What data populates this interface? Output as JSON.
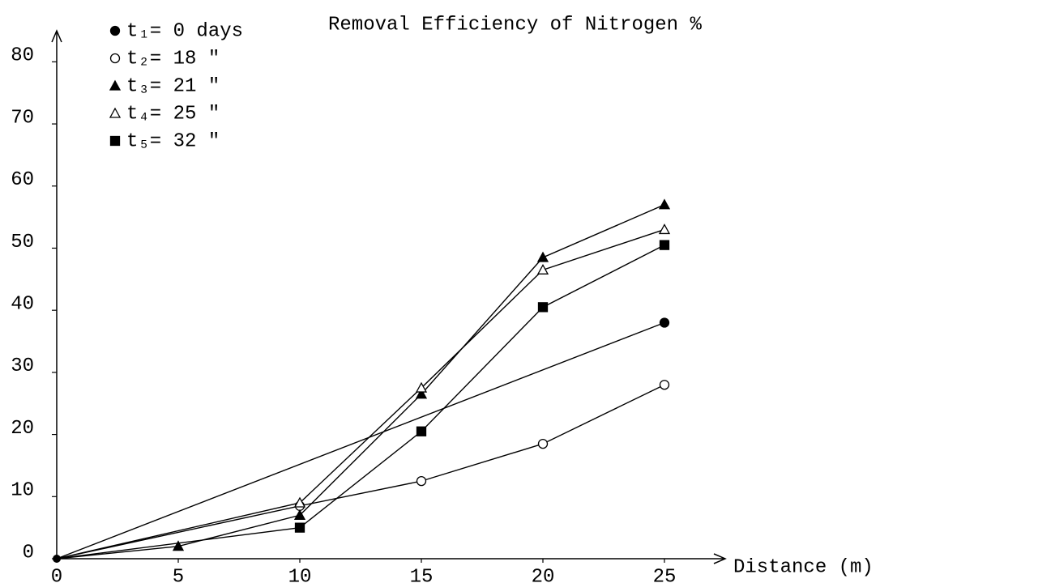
{
  "chart_data": {
    "type": "line",
    "title": "Removal Efficiency of Nitrogen %",
    "x_label": "Distance (m)",
    "xlim": [
      0,
      27.5
    ],
    "xticks": [
      0,
      5,
      10,
      15,
      20,
      25
    ],
    "ylim": [
      0,
      85
    ],
    "yticks": [
      0,
      10,
      20,
      30,
      40,
      50,
      60,
      70,
      80
    ],
    "grid": false,
    "series": [
      {
        "name": "t₁= 0 days",
        "color": "#000000",
        "marker": "circle",
        "fill": "#000000",
        "x": [
          0,
          25
        ],
        "values": [
          0,
          38
        ]
      },
      {
        "name": "t₂= 18 \"",
        "color": "#000000",
        "marker": "circle",
        "fill": "#ffffff",
        "x": [
          0,
          10,
          15,
          20,
          25
        ],
        "values": [
          0,
          8.5,
          12.5,
          18.5,
          28
        ]
      },
      {
        "name": "t₃= 21 \"",
        "color": "#000000",
        "marker": "triangle",
        "fill": "#000000",
        "x": [
          0,
          5,
          10,
          15,
          20,
          25
        ],
        "values": [
          0,
          2,
          7,
          26.5,
          48.5,
          57
        ]
      },
      {
        "name": "t₄= 25 \"",
        "color": "#000000",
        "marker": "triangle",
        "fill": "#ffffff",
        "x": [
          0,
          10,
          15,
          20,
          25
        ],
        "values": [
          0,
          9,
          27.5,
          46.5,
          53
        ]
      },
      {
        "name": "t₅= 32 \"",
        "color": "#000000",
        "marker": "square",
        "fill": "#000000",
        "x": [
          0,
          10,
          15,
          20,
          25
        ],
        "values": [
          0,
          5,
          20.5,
          40.5,
          50.5
        ]
      }
    ]
  }
}
